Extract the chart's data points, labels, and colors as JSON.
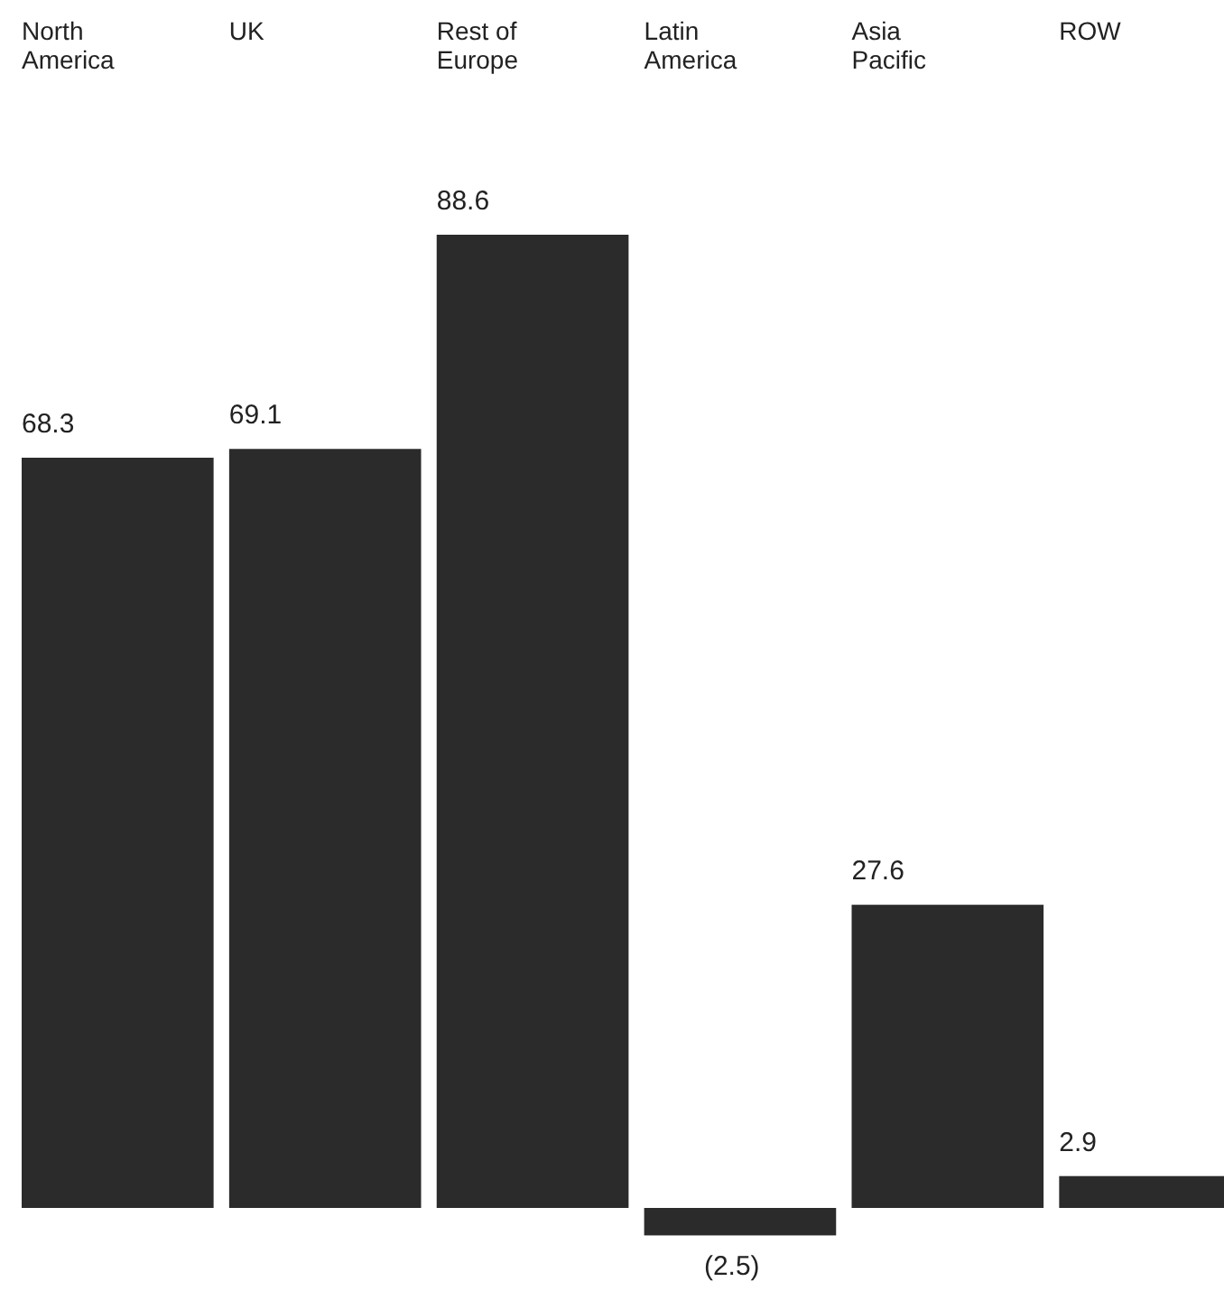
{
  "chart_data": {
    "type": "bar",
    "categories": [
      "North America",
      "UK",
      "Rest of Europe",
      "Latin America",
      "Asia Pacific",
      "ROW"
    ],
    "values": [
      68.3,
      69.1,
      88.6,
      -2.5,
      27.6,
      2.9
    ],
    "color": "#2b2b2b",
    "value_labels": [
      "68.3",
      "69.1",
      "88.6",
      "(2.5)",
      "27.6",
      "2.9"
    ]
  }
}
